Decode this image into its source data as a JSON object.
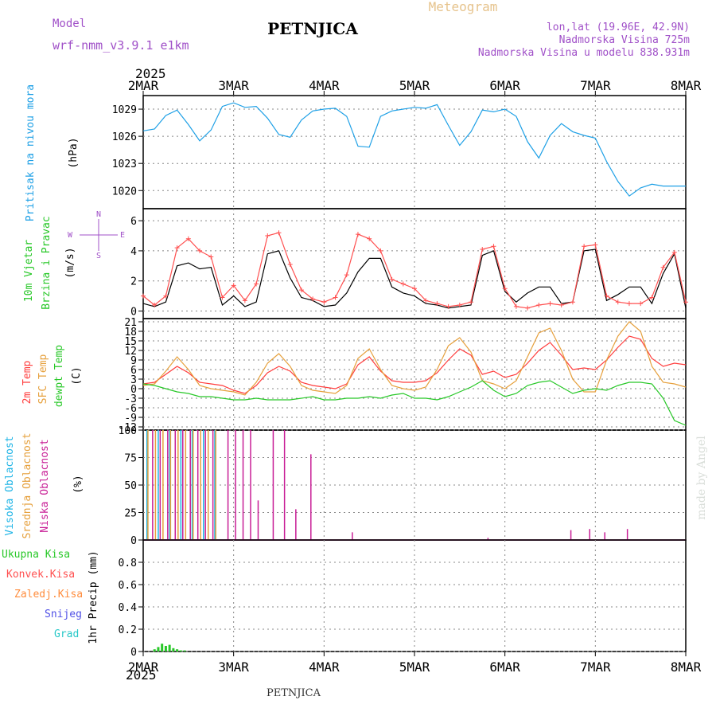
{
  "header": {
    "model_label": "Model",
    "model_name": "wrf-nmm_v3.9.1 e1km",
    "station": "PETNJICA",
    "product": "Meteogram",
    "lonlat": "lon,lat (19.96E, 42.9N)",
    "elevation": "Nadmorska Visina 725m",
    "model_elevation": "Nadmorska Visina u modelu 838.931m",
    "year": "2025",
    "footer_station": "PETNJICA",
    "credit": "made by Angel"
  },
  "colors": {
    "pressure": "#1ea0e6",
    "wind_speed": "#000000",
    "gust": "#ff5050",
    "temp2m": "#ff3c3c",
    "sfc_temp": "#e6a03c",
    "dewpoint": "#28c828",
    "cloud_high": "#1eb4e6",
    "cloud_mid": "#e6a03c",
    "cloud_low": "#c81e96",
    "precip_total": "#28c828"
  },
  "chart_data": [
    {
      "type": "line",
      "title": "",
      "ylabel": [
        "Pritisak na nivou mora",
        "(hPa)"
      ],
      "ylim": [
        1018,
        1030.5
      ],
      "yticks": [
        1020,
        1023,
        1026,
        1029
      ],
      "x_unit": "hours since 2MAR 00",
      "x_categories": [
        "2MAR",
        "3MAR",
        "4MAR",
        "5MAR",
        "6MAR",
        "7MAR",
        "8MAR"
      ],
      "grid": true,
      "series": [
        {
          "name": "pressure",
          "x": [
            0,
            3,
            6,
            9,
            12,
            15,
            18,
            21,
            24,
            27,
            30,
            33,
            36,
            39,
            42,
            45,
            48,
            51,
            54,
            57,
            60,
            63,
            66,
            69,
            72,
            75,
            78,
            81,
            84,
            87,
            90,
            93,
            96,
            99,
            102,
            105,
            108,
            111,
            114,
            117,
            120,
            123,
            126,
            129,
            132,
            135,
            138,
            141,
            144
          ],
          "values": [
            1026.6,
            1026.8,
            1028.3,
            1028.9,
            1027.3,
            1025.5,
            1026.7,
            1029.3,
            1029.7,
            1029.2,
            1029.3,
            1028.0,
            1026.2,
            1025.9,
            1027.8,
            1028.8,
            1029.0,
            1029.1,
            1028.2,
            1024.9,
            1024.8,
            1028.2,
            1028.8,
            1029.0,
            1029.2,
            1029.1,
            1029.5,
            1027.2,
            1025.0,
            1026.5,
            1028.9,
            1028.7,
            1029.0,
            1028.2,
            1025.4,
            1023.6,
            1026.1,
            1027.4,
            1026.5,
            1026.1,
            1025.8,
            1023.2,
            1021.0,
            1019.4,
            1020.3,
            1020.7,
            1020.5,
            1020.5,
            1020.5
          ]
        }
      ]
    },
    {
      "type": "line",
      "title": "",
      "ylabel": [
        "10m Vjetar",
        "Brzina i Pravac",
        "(m/s)"
      ],
      "direction_legend": [
        "N",
        "W",
        "E",
        "S"
      ],
      "ylim": [
        -0.5,
        6.8
      ],
      "yticks": [
        0,
        2,
        4,
        6
      ],
      "x_categories": [
        "2MAR",
        "3MAR",
        "4MAR",
        "5MAR",
        "6MAR",
        "7MAR",
        "8MAR"
      ],
      "grid": true,
      "series": [
        {
          "name": "wind_speed",
          "x": [
            0,
            3,
            6,
            9,
            12,
            15,
            18,
            21,
            24,
            27,
            30,
            33,
            36,
            39,
            42,
            45,
            48,
            51,
            54,
            57,
            60,
            63,
            66,
            69,
            72,
            75,
            78,
            81,
            84,
            87,
            90,
            93,
            96,
            99,
            102,
            105,
            108,
            111,
            114,
            117,
            120,
            123,
            126,
            129,
            132,
            135,
            138,
            141,
            144
          ],
          "values": [
            0.5,
            0.3,
            0.6,
            3.0,
            3.2,
            2.8,
            2.9,
            0.4,
            1.0,
            0.3,
            0.6,
            3.8,
            4.0,
            2.2,
            0.9,
            0.7,
            0.3,
            0.4,
            1.2,
            2.6,
            3.5,
            3.5,
            1.6,
            1.2,
            1.0,
            0.5,
            0.4,
            0.2,
            0.3,
            0.4,
            3.7,
            4.0,
            1.3,
            0.6,
            1.2,
            1.6,
            1.6,
            0.5,
            0.6,
            4.0,
            4.1,
            0.7,
            1.1,
            1.6,
            1.6,
            0.5,
            2.5,
            3.8,
            0.2
          ]
        },
        {
          "name": "gust",
          "x": [
            0,
            3,
            6,
            9,
            12,
            15,
            18,
            21,
            24,
            27,
            30,
            33,
            36,
            39,
            42,
            45,
            48,
            51,
            54,
            57,
            60,
            63,
            66,
            69,
            72,
            75,
            78,
            81,
            84,
            87,
            90,
            93,
            96,
            99,
            102,
            105,
            108,
            111,
            114,
            117,
            120,
            123,
            126,
            129,
            132,
            135,
            138,
            141,
            144
          ],
          "values": [
            1.0,
            0.4,
            1.0,
            4.2,
            4.8,
            4.0,
            3.6,
            0.9,
            1.7,
            0.7,
            1.8,
            5.0,
            5.2,
            3.1,
            1.4,
            0.8,
            0.6,
            0.9,
            2.4,
            5.1,
            4.8,
            4.0,
            2.1,
            1.8,
            1.5,
            0.7,
            0.5,
            0.3,
            0.4,
            0.6,
            4.1,
            4.3,
            1.5,
            0.3,
            0.2,
            0.4,
            0.5,
            0.4,
            0.6,
            4.3,
            4.4,
            1.0,
            0.6,
            0.5,
            0.5,
            0.9,
            2.9,
            3.9,
            0.6
          ]
        }
      ]
    },
    {
      "type": "line",
      "title": "",
      "ylabel": [
        "2m Temp",
        "SFC Temp",
        "dewpt Temp",
        "(C)"
      ],
      "ylim": [
        -13,
        22
      ],
      "yticks": [
        -12,
        -9,
        -6,
        -3,
        0,
        3,
        6,
        9,
        12,
        15,
        18,
        21
      ],
      "x_categories": [
        "2MAR",
        "3MAR",
        "4MAR",
        "5MAR",
        "6MAR",
        "7MAR",
        "8MAR"
      ],
      "grid": true,
      "series": [
        {
          "name": "temp2m",
          "x": [
            0,
            3,
            6,
            9,
            12,
            15,
            18,
            21,
            24,
            27,
            30,
            33,
            36,
            39,
            42,
            45,
            48,
            51,
            54,
            57,
            60,
            63,
            66,
            69,
            72,
            75,
            78,
            81,
            84,
            87,
            90,
            93,
            96,
            99,
            102,
            105,
            108,
            111,
            114,
            117,
            120,
            123,
            126,
            129,
            132,
            135,
            138,
            141,
            144
          ],
          "values": [
            1.5,
            2.0,
            4.5,
            7.0,
            5.0,
            2.0,
            1.5,
            1.0,
            -0.5,
            -1.5,
            1.0,
            5.0,
            7.0,
            5.5,
            2.0,
            1.0,
            0.5,
            0.0,
            1.5,
            7.5,
            10.0,
            5.5,
            2.5,
            2.0,
            2.0,
            2.5,
            5.0,
            9.0,
            12.5,
            10.5,
            4.5,
            5.5,
            3.5,
            4.5,
            8.0,
            12.0,
            14.5,
            10.5,
            6.0,
            6.5,
            6.0,
            9.0,
            13.0,
            16.5,
            15.5,
            9.5,
            7.0,
            8.0,
            7.5
          ]
        },
        {
          "name": "sfc_temp",
          "x": [
            0,
            3,
            6,
            9,
            12,
            15,
            18,
            21,
            24,
            27,
            30,
            33,
            36,
            39,
            42,
            45,
            48,
            51,
            54,
            57,
            60,
            63,
            66,
            69,
            72,
            75,
            78,
            81,
            84,
            87,
            90,
            93,
            96,
            99,
            102,
            105,
            108,
            111,
            114,
            117,
            120,
            123,
            126,
            129,
            132,
            135,
            138,
            141,
            144
          ],
          "values": [
            1.0,
            1.5,
            5.5,
            10.0,
            6.0,
            1.0,
            0.0,
            -0.5,
            -1.0,
            -2.0,
            2.0,
            8.0,
            11.0,
            7.0,
            1.0,
            -0.5,
            -1.0,
            -1.5,
            1.0,
            9.5,
            12.5,
            6.0,
            1.0,
            0.0,
            -0.5,
            0.5,
            6.0,
            13.5,
            16.0,
            11.5,
            2.5,
            1.5,
            0.0,
            2.5,
            10.0,
            17.5,
            19.0,
            12.0,
            3.0,
            -1.0,
            -1.0,
            9.0,
            16.5,
            21.0,
            18.0,
            7.0,
            2.0,
            1.5,
            0.5
          ]
        },
        {
          "name": "dewpoint",
          "x": [
            0,
            3,
            6,
            9,
            12,
            15,
            18,
            21,
            24,
            27,
            30,
            33,
            36,
            39,
            42,
            45,
            48,
            51,
            54,
            57,
            60,
            63,
            66,
            69,
            72,
            75,
            78,
            81,
            84,
            87,
            90,
            93,
            96,
            99,
            102,
            105,
            108,
            111,
            114,
            117,
            120,
            123,
            126,
            129,
            132,
            135,
            138,
            141,
            144
          ],
          "values": [
            1.5,
            1.0,
            0.0,
            -1.0,
            -1.5,
            -2.5,
            -2.5,
            -3.0,
            -3.5,
            -3.5,
            -3.0,
            -3.5,
            -3.5,
            -3.5,
            -3.0,
            -2.5,
            -3.5,
            -3.5,
            -3.0,
            -3.0,
            -2.5,
            -3.0,
            -2.0,
            -1.5,
            -3.0,
            -3.0,
            -3.5,
            -2.5,
            -1.0,
            0.5,
            2.5,
            -0.5,
            -2.5,
            -1.5,
            1.0,
            2.0,
            2.5,
            0.5,
            -1.5,
            -0.5,
            0.0,
            -0.5,
            1.0,
            2.0,
            2.0,
            1.5,
            -3.0,
            -10.0,
            -11.5
          ]
        }
      ]
    },
    {
      "type": "bar",
      "title": "",
      "ylabel": [
        "Visoka Oblacnost",
        "Srednja Oblacnost",
        "Niska Oblacnost",
        "(%)"
      ],
      "ylim": [
        0,
        100
      ],
      "yticks": [
        0,
        25,
        50,
        75,
        100
      ],
      "x_categories": [
        "2MAR",
        "3MAR",
        "4MAR",
        "5MAR",
        "6MAR",
        "7MAR",
        "8MAR"
      ],
      "grid": true,
      "series": [
        {
          "name": "cloud_high",
          "x": [
            1,
            4,
            7,
            10,
            13,
            16,
            19
          ],
          "values": [
            100,
            100,
            100,
            100,
            100,
            100,
            100
          ]
        },
        {
          "name": "cloud_mid",
          "x": [
            1,
            3,
            5,
            7,
            9,
            11,
            13,
            15,
            17,
            19
          ],
          "values": [
            100,
            100,
            100,
            100,
            100,
            100,
            100,
            100,
            100,
            100
          ]
        },
        {
          "name": "cloud_low",
          "x": [
            2,
            4,
            6,
            8,
            10,
            12,
            14,
            16,
            18,
            20,
            22,
            24,
            26,
            28,
            30,
            32,
            34,
            37,
            40,
            41,
            44,
            53,
            55,
            60,
            61,
            62,
            63,
            72,
            75,
            79,
            82,
            86,
            89,
            91,
            93,
            96,
            98,
            102,
            107,
            110,
            113,
            118,
            122,
            128,
            135,
            143
          ],
          "values": [
            100,
            100,
            100,
            100,
            100,
            100,
            100,
            100,
            100,
            0,
            100,
            100,
            100,
            100,
            36,
            0,
            100,
            100,
            28,
            0,
            78,
            0,
            7,
            0,
            0,
            0,
            0,
            0,
            0,
            0,
            0,
            0,
            0,
            2,
            0,
            0,
            0,
            0,
            0,
            0,
            9,
            10,
            7,
            10,
            0,
            0
          ]
        }
      ]
    },
    {
      "type": "bar",
      "title": "",
      "ylabel": [
        "Ukupna Kisa",
        "Konvek.Kisa",
        "Zaledj.Kisa",
        "Snijeg",
        "Grad",
        "1hr Precip (mm)"
      ],
      "ylim": [
        0,
        1.0
      ],
      "yticks": [
        0,
        0.2,
        0.4,
        0.6,
        0.8
      ],
      "x_categories": [
        "2MAR",
        "3MAR",
        "4MAR",
        "5MAR",
        "6MAR",
        "7MAR",
        "8MAR"
      ],
      "grid": true,
      "series": [
        {
          "name": "precip_total",
          "x": [
            3,
            4,
            5,
            6,
            7,
            8,
            9,
            10,
            11
          ],
          "values": [
            0.02,
            0.04,
            0.07,
            0.05,
            0.06,
            0.03,
            0.02,
            0.01,
            0.01
          ]
        }
      ]
    }
  ]
}
